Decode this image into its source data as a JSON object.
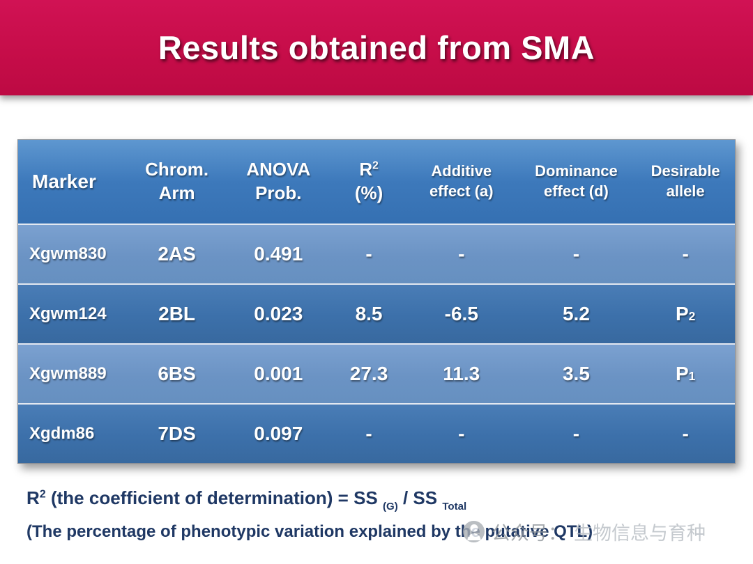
{
  "slide": {
    "title": "Results obtained from SMA"
  },
  "table": {
    "headers": [
      {
        "label": "Marker"
      },
      {
        "line1": "Chrom.",
        "line2": "Arm"
      },
      {
        "line1": "ANOVA",
        "line2": "Prob."
      },
      {
        "base": "R",
        "sup": "2",
        "line2": "(%)"
      },
      {
        "line1": "Additive",
        "line2": "effect (a)"
      },
      {
        "line1": "Dominance",
        "line2": "effect (d)"
      },
      {
        "line1": "Desirable",
        "line2": "allele"
      }
    ],
    "rows": [
      {
        "marker": "Xgwm830",
        "arm": "2AS",
        "anova": "0.491",
        "r2": "-",
        "additive": "-",
        "dominance": "-",
        "allele": "-",
        "allele_sub": ""
      },
      {
        "marker": "Xgwm124",
        "arm": "2BL",
        "anova": "0.023",
        "r2": "8.5",
        "additive": "-6.5",
        "dominance": "5.2",
        "allele": "P",
        "allele_sub": "2"
      },
      {
        "marker": "Xgwm889",
        "arm": "6BS",
        "anova": "0.001",
        "r2": "27.3",
        "additive": "11.3",
        "dominance": "3.5",
        "allele": "P",
        "allele_sub": "1"
      },
      {
        "marker": "Xgdm86",
        "arm": "7DS",
        "anova": "0.097",
        "r2": "-",
        "additive": "-",
        "dominance": "-",
        "allele": "-",
        "allele_sub": ""
      }
    ]
  },
  "footnotes": {
    "line1": {
      "base": "R",
      "sup": "2",
      "mid": " (the coefficient of determination) = SS ",
      "sub1": "(G)",
      "mid2": " / SS ",
      "sub2": "Total"
    },
    "line2": "(The percentage of phenotypic variation explained by the putative QTL)"
  },
  "watermark": {
    "icon": "person-circle-icon",
    "prefix": "公众号：",
    "name": "生物信息与育种"
  },
  "colors": {
    "banner_red": "#C60D49",
    "header_blue": "#3D79BB",
    "row_light_blue": "#6B93C4",
    "row_dark_blue": "#3C70AA",
    "footnote_navy": "#1F3864",
    "table_text_white": "#FFFFFF",
    "watermark_gray": "#A9AEB4"
  }
}
